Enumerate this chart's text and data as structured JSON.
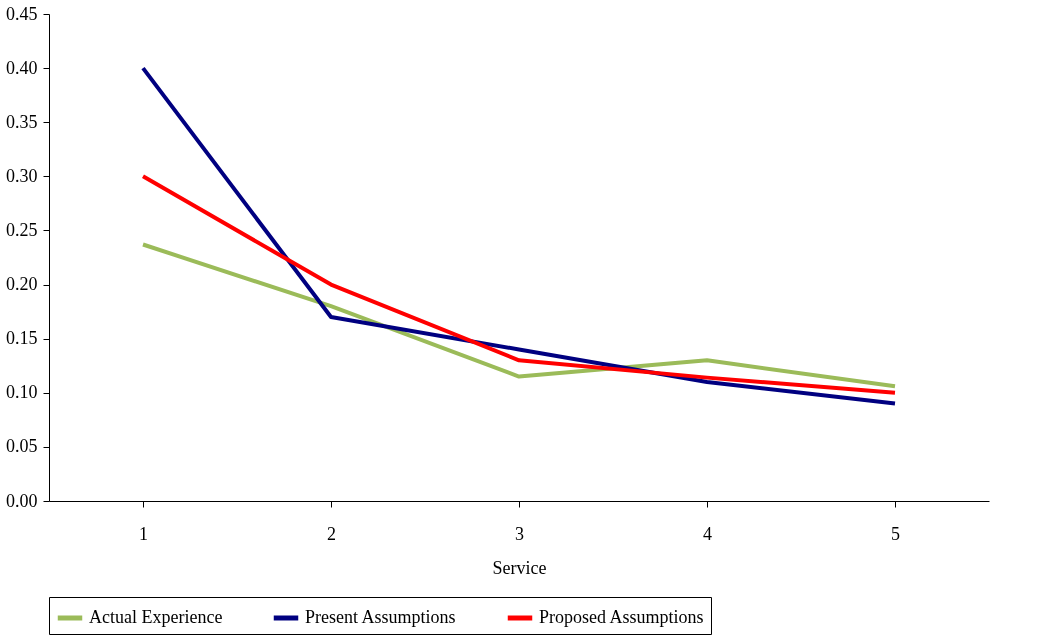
{
  "chart_data": {
    "type": "line",
    "xlabel": "Service",
    "categories": [
      "1",
      "2",
      "3",
      "4",
      "5"
    ],
    "series": [
      {
        "name": "Actual Experience",
        "color": "#9bbb59",
        "values": [
          0.237,
          0.18,
          0.115,
          0.13,
          0.106
        ]
      },
      {
        "name": "Present Assumptions",
        "color": "#000080",
        "values": [
          0.4,
          0.17,
          0.14,
          0.11,
          0.09
        ]
      },
      {
        "name": "Proposed Assumptions",
        "color": "#ff0000",
        "values": [
          0.3,
          0.2,
          0.13,
          0.114,
          0.1
        ]
      }
    ],
    "ylim": [
      0,
      0.45
    ],
    "yticks": [
      {
        "value": 0,
        "label": "0.00"
      },
      0.05,
      {
        "value": 0.1,
        "label": "0.10"
      },
      0.15,
      {
        "value": 0.2,
        "label": "0.20"
      },
      0.25,
      {
        "value": 0.3,
        "label": "0.30"
      },
      0.35,
      {
        "value": 0.4,
        "label": "0.40"
      },
      0.45
    ],
    "grid": false,
    "legend": "bottom",
    "marker": "none",
    "line_style": "solid"
  }
}
